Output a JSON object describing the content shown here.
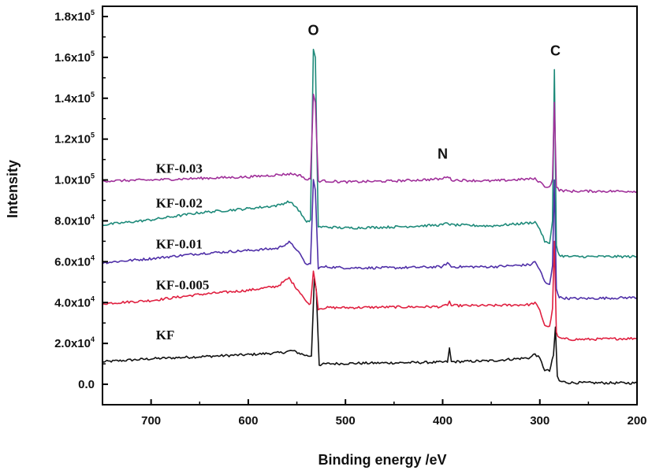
{
  "chart_data": {
    "type": "line",
    "xlabel": "Binding energy /eV",
    "ylabel": "Intensity",
    "xlim": [
      750,
      200
    ],
    "x_reversed": true,
    "ylim": [
      -10000,
      185000
    ],
    "x_ticks": [
      {
        "value": 700,
        "label": "700"
      },
      {
        "value": 600,
        "label": "600"
      },
      {
        "value": 500,
        "label": "500"
      },
      {
        "value": 400,
        "label": "400"
      },
      {
        "value": 300,
        "label": "300"
      },
      {
        "value": 200,
        "label": "200"
      }
    ],
    "y_ticks": [
      {
        "value": 0,
        "mant": "0.0",
        "exp": ""
      },
      {
        "value": 20000,
        "mant": "2.0x10",
        "exp": "4"
      },
      {
        "value": 40000,
        "mant": "4.0x10",
        "exp": "4"
      },
      {
        "value": 60000,
        "mant": "6.0x10",
        "exp": "4"
      },
      {
        "value": 80000,
        "mant": "8.0x10",
        "exp": "4"
      },
      {
        "value": 100000,
        "mant": "1.0x10",
        "exp": "5"
      },
      {
        "value": 120000,
        "mant": "1.2x10",
        "exp": "5"
      },
      {
        "value": 140000,
        "mant": "1.4x10",
        "exp": "5"
      },
      {
        "value": 160000,
        "mant": "1.6x10",
        "exp": "5"
      },
      {
        "value": 180000,
        "mant": "1.8x10",
        "exp": "5"
      }
    ],
    "peak_labels": [
      {
        "text": "O",
        "x": 533,
        "y": 171000
      },
      {
        "text": "N",
        "x": 400,
        "y": 110500
      },
      {
        "text": "C",
        "x": 284,
        "y": 161000
      }
    ],
    "series": [
      {
        "name": "KF",
        "color": "#111111",
        "label_x": 695,
        "label_y": 22000,
        "points": [
          [
            750,
            11000
          ],
          [
            700,
            12500
          ],
          [
            650,
            13500
          ],
          [
            600,
            14500
          ],
          [
            565,
            15500
          ],
          [
            555,
            16500
          ],
          [
            545,
            14800
          ],
          [
            540,
            14000
          ],
          [
            535,
            13800
          ],
          [
            532,
            52000
          ],
          [
            530,
            46000
          ],
          [
            527,
            9500
          ],
          [
            520,
            10000
          ],
          [
            500,
            10200
          ],
          [
            450,
            10500
          ],
          [
            400,
            10800
          ],
          [
            395,
            11000
          ],
          [
            393,
            17500
          ],
          [
            391,
            11000
          ],
          [
            350,
            11500
          ],
          [
            310,
            13000
          ],
          [
            305,
            15000
          ],
          [
            300,
            12500
          ],
          [
            295,
            7000
          ],
          [
            290,
            6500
          ],
          [
            286,
            14000
          ],
          [
            284,
            28000
          ],
          [
            282,
            4000
          ],
          [
            280,
            1500
          ],
          [
            270,
            800
          ],
          [
            250,
            700
          ],
          [
            200,
            600
          ]
        ]
      },
      {
        "name": "KF-0.005",
        "color": "#e02040",
        "label_x": 695,
        "label_y": 46500,
        "points": [
          [
            750,
            39500
          ],
          [
            700,
            41000
          ],
          [
            650,
            44000
          ],
          [
            600,
            46000
          ],
          [
            570,
            48000
          ],
          [
            558,
            52000
          ],
          [
            552,
            48000
          ],
          [
            545,
            44000
          ],
          [
            540,
            40000
          ],
          [
            536,
            39500
          ],
          [
            533,
            55000
          ],
          [
            531,
            50000
          ],
          [
            528,
            37000
          ],
          [
            520,
            37500
          ],
          [
            500,
            37500
          ],
          [
            450,
            37800
          ],
          [
            400,
            38000
          ],
          [
            395,
            39000
          ],
          [
            393,
            40500
          ],
          [
            391,
            38500
          ],
          [
            350,
            38500
          ],
          [
            310,
            39000
          ],
          [
            305,
            40000
          ],
          [
            300,
            36000
          ],
          [
            295,
            29000
          ],
          [
            290,
            28000
          ],
          [
            287,
            37000
          ],
          [
            285,
            70000
          ],
          [
            283,
            25000
          ],
          [
            280,
            22500
          ],
          [
            270,
            22000
          ],
          [
            250,
            22000
          ],
          [
            200,
            22500
          ]
        ]
      },
      {
        "name": "KF-0.01",
        "color": "#5030a8",
        "label_x": 695,
        "label_y": 66500,
        "points": [
          [
            750,
            59500
          ],
          [
            700,
            61500
          ],
          [
            650,
            64000
          ],
          [
            600,
            65500
          ],
          [
            570,
            66500
          ],
          [
            558,
            69500
          ],
          [
            550,
            66000
          ],
          [
            545,
            62000
          ],
          [
            540,
            58500
          ],
          [
            536,
            59000
          ],
          [
            533,
            100000
          ],
          [
            531,
            95000
          ],
          [
            528,
            57000
          ],
          [
            520,
            57500
          ],
          [
            500,
            57000
          ],
          [
            450,
            57000
          ],
          [
            400,
            57500
          ],
          [
            395,
            59500
          ],
          [
            391,
            57500
          ],
          [
            350,
            57500
          ],
          [
            310,
            58500
          ],
          [
            305,
            60000
          ],
          [
            300,
            56000
          ],
          [
            295,
            50000
          ],
          [
            290,
            48500
          ],
          [
            287,
            58000
          ],
          [
            285,
            100000
          ],
          [
            283,
            47000
          ],
          [
            280,
            42500
          ],
          [
            270,
            42000
          ],
          [
            250,
            42000
          ],
          [
            200,
            42500
          ]
        ]
      },
      {
        "name": "KF-0.02",
        "color": "#1e8a7a",
        "label_x": 695,
        "label_y": 86500,
        "points": [
          [
            750,
            78000
          ],
          [
            700,
            80500
          ],
          [
            650,
            84000
          ],
          [
            600,
            86000
          ],
          [
            570,
            87500
          ],
          [
            558,
            89500
          ],
          [
            550,
            86500
          ],
          [
            545,
            83000
          ],
          [
            540,
            79000
          ],
          [
            536,
            80500
          ],
          [
            533,
            164000
          ],
          [
            531,
            160000
          ],
          [
            528,
            77000
          ],
          [
            520,
            77000
          ],
          [
            500,
            76500
          ],
          [
            450,
            77000
          ],
          [
            400,
            78000
          ],
          [
            395,
            79000
          ],
          [
            391,
            78000
          ],
          [
            350,
            77500
          ],
          [
            310,
            79000
          ],
          [
            305,
            79500
          ],
          [
            300,
            76000
          ],
          [
            295,
            70000
          ],
          [
            290,
            68500
          ],
          [
            287,
            80000
          ],
          [
            285,
            154000
          ],
          [
            283,
            68000
          ],
          [
            280,
            63000
          ],
          [
            270,
            62500
          ],
          [
            250,
            62500
          ],
          [
            200,
            62500
          ]
        ]
      },
      {
        "name": "KF-0.03",
        "color": "#a0309a",
        "label_x": 695,
        "label_y": 103500,
        "points": [
          [
            750,
            99500
          ],
          [
            700,
            100000
          ],
          [
            650,
            100800
          ],
          [
            600,
            101500
          ],
          [
            570,
            102500
          ],
          [
            555,
            103000
          ],
          [
            545,
            102000
          ],
          [
            540,
            100000
          ],
          [
            536,
            100500
          ],
          [
            533,
            142000
          ],
          [
            531,
            138000
          ],
          [
            528,
            99500
          ],
          [
            520,
            99500
          ],
          [
            500,
            99000
          ],
          [
            450,
            99500
          ],
          [
            400,
            100500
          ],
          [
            395,
            102000
          ],
          [
            391,
            100000
          ],
          [
            350,
            99500
          ],
          [
            310,
            100500
          ],
          [
            305,
            100500
          ],
          [
            300,
            99000
          ],
          [
            295,
            97000
          ],
          [
            290,
            96500
          ],
          [
            287,
            100500
          ],
          [
            285,
            138000
          ],
          [
            283,
            96500
          ],
          [
            280,
            95000
          ],
          [
            270,
            94500
          ],
          [
            250,
            94500
          ],
          [
            200,
            94500
          ]
        ]
      }
    ]
  }
}
